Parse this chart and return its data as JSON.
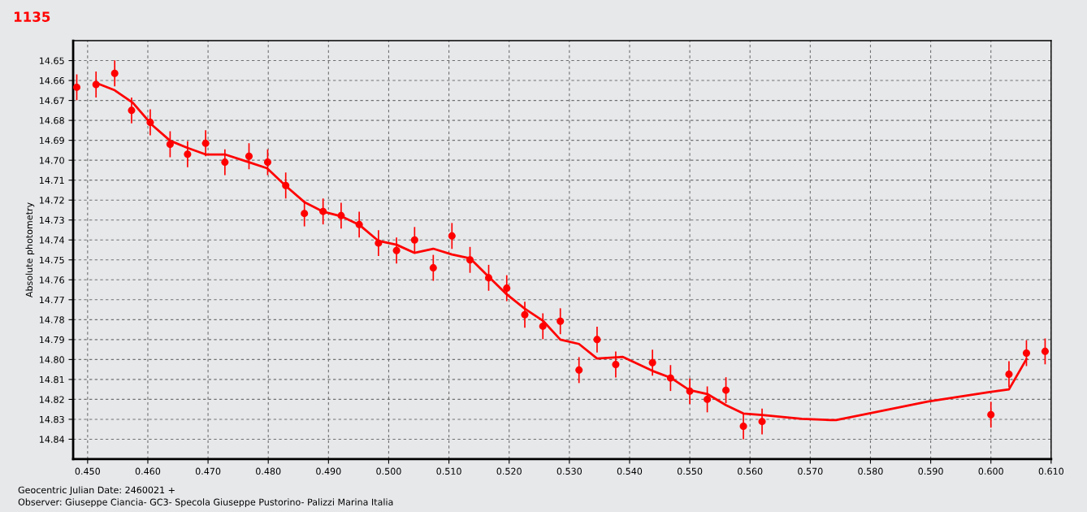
{
  "chart_data": {
    "type": "scatter",
    "title": "1135",
    "xlabel": "Geocentric Julian Date: 2460021 +",
    "ylabel": "Absolute photometry",
    "annotations": [
      "Observer: Giuseppe Ciancia- GC3- Specola Giuseppe Pustorino- Palizzi Marina Italia"
    ],
    "xlim": [
      0.4476,
      0.61
    ],
    "ylim": [
      14.85,
      14.64
    ],
    "xticks": [
      {
        "value": 0.45,
        "label": "0.450"
      },
      {
        "value": 0.46,
        "label": "0.460"
      },
      {
        "value": 0.47,
        "label": "0.470"
      },
      {
        "value": 0.48,
        "label": "0.480"
      },
      {
        "value": 0.49,
        "label": "0.490"
      },
      {
        "value": 0.5,
        "label": "0.500"
      },
      {
        "value": 0.51,
        "label": "0.510"
      },
      {
        "value": 0.52,
        "label": "0.520"
      },
      {
        "value": 0.53,
        "label": "0.530"
      },
      {
        "value": 0.54,
        "label": "0.540"
      },
      {
        "value": 0.55,
        "label": "0.550"
      },
      {
        "value": 0.56,
        "label": "0.560"
      },
      {
        "value": 0.57,
        "label": "0.570"
      },
      {
        "value": 0.58,
        "label": "0.580"
      },
      {
        "value": 0.59,
        "label": "0.590"
      },
      {
        "value": 0.6,
        "label": "0.600"
      },
      {
        "value": 0.61,
        "label": "0.610"
      }
    ],
    "yticks": [
      {
        "value": 14.65,
        "label": "14.65"
      },
      {
        "value": 14.66,
        "label": "14.66"
      },
      {
        "value": 14.67,
        "label": "14.67"
      },
      {
        "value": 14.68,
        "label": "14.68"
      },
      {
        "value": 14.69,
        "label": "14.69"
      },
      {
        "value": 14.7,
        "label": "14.70"
      },
      {
        "value": 14.71,
        "label": "14.71"
      },
      {
        "value": 14.72,
        "label": "14.72"
      },
      {
        "value": 14.73,
        "label": "14.73"
      },
      {
        "value": 14.74,
        "label": "14.74"
      },
      {
        "value": 14.75,
        "label": "14.75"
      },
      {
        "value": 14.76,
        "label": "14.76"
      },
      {
        "value": 14.77,
        "label": "14.77"
      },
      {
        "value": 14.78,
        "label": "14.78"
      },
      {
        "value": 14.79,
        "label": "14.79"
      },
      {
        "value": 14.8,
        "label": "14.80"
      },
      {
        "value": 14.81,
        "label": "14.81"
      },
      {
        "value": 14.82,
        "label": "14.82"
      },
      {
        "value": 14.83,
        "label": "14.83"
      },
      {
        "value": 14.84,
        "label": "14.84"
      }
    ],
    "grid": true,
    "marker": "circle",
    "series": [
      {
        "color": "#ff0000",
        "x": [
          0.4482,
          0.4514,
          0.4545,
          0.4573,
          0.4604,
          0.4637,
          0.4666,
          0.4696,
          0.4728,
          0.4768,
          0.4799,
          0.4829,
          0.486,
          0.4891,
          0.4921,
          0.4951,
          0.4983,
          0.5013,
          0.5043,
          0.5074,
          0.5105,
          0.5135,
          0.5166,
          0.5196,
          0.5226,
          0.5256,
          0.5285,
          0.5316,
          0.5346,
          0.5377,
          0.5438,
          0.5468,
          0.55,
          0.5529,
          0.556,
          0.5589,
          0.562,
          0.6,
          0.603,
          0.6059,
          0.609
        ],
        "values": [
          14.6634,
          14.662,
          14.6564,
          14.675,
          14.681,
          14.692,
          14.697,
          14.6915,
          14.701,
          14.698,
          14.701,
          14.7127,
          14.7267,
          14.7257,
          14.7278,
          14.7323,
          14.7416,
          14.7453,
          14.74,
          14.754,
          14.738,
          14.75,
          14.759,
          14.7642,
          14.7775,
          14.7833,
          14.7808,
          14.8053,
          14.79,
          14.8025,
          14.8016,
          14.8093,
          14.8159,
          14.82,
          14.8154,
          14.8335,
          14.8311,
          14.8277,
          14.8074,
          14.7968,
          14.7959
        ],
        "errors": [
          0.0065,
          0.0065,
          0.0065,
          0.0065,
          0.0065,
          0.0065,
          0.0065,
          0.0065,
          0.0065,
          0.0065,
          0.0065,
          0.0065,
          0.0065,
          0.0065,
          0.0065,
          0.0065,
          0.0065,
          0.0065,
          0.0065,
          0.0065,
          0.0065,
          0.0065,
          0.0065,
          0.0065,
          0.0065,
          0.0065,
          0.0065,
          0.0065,
          0.0065,
          0.0065,
          0.0065,
          0.0065,
          0.0065,
          0.0065,
          0.0065,
          0.0065,
          0.0065,
          0.0065,
          0.0065,
          0.0065,
          0.0065
        ]
      },
      {
        "type": "line",
        "color": "#ff0000",
        "marker": "none",
        "line_style": "solid",
        "x": [
          0.4514,
          0.4545,
          0.4575,
          0.4607,
          0.4637,
          0.4666,
          0.4696,
          0.4728,
          0.4768,
          0.4798,
          0.4829,
          0.486,
          0.4891,
          0.4921,
          0.4952,
          0.4983,
          0.5013,
          0.5043,
          0.5074,
          0.5105,
          0.5135,
          0.5166,
          0.5196,
          0.5226,
          0.5256,
          0.5285,
          0.5316,
          0.5346,
          0.5389,
          0.5438,
          0.5468,
          0.5499,
          0.5529,
          0.556,
          0.5589,
          0.562,
          0.5686,
          0.5734,
          0.5743,
          0.5895,
          0.5998,
          0.603,
          0.6059
        ],
        "values": [
          14.6612,
          14.6649,
          14.6711,
          14.6823,
          14.6902,
          14.6938,
          14.6971,
          14.6971,
          14.701,
          14.704,
          14.7129,
          14.721,
          14.7258,
          14.7281,
          14.7326,
          14.7405,
          14.7424,
          14.7465,
          14.7444,
          14.7473,
          14.7492,
          14.7585,
          14.7673,
          14.7745,
          14.7805,
          14.79,
          14.7922,
          14.7995,
          14.7987,
          14.8057,
          14.8091,
          14.8153,
          14.8173,
          14.8229,
          14.8271,
          14.8278,
          14.8298,
          14.8304,
          14.8304,
          14.8211,
          14.8163,
          14.815,
          14.7998
        ]
      }
    ]
  }
}
